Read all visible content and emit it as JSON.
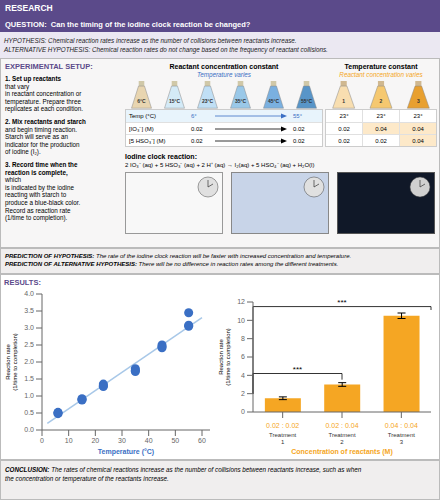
{
  "chart_data": [
    {
      "type": "scatter",
      "x": [
        6,
        6,
        6,
        15,
        15,
        15,
        23,
        23,
        23,
        35,
        35,
        35,
        45,
        45,
        45,
        55,
        55,
        55
      ],
      "series": [
        {
          "type": "line",
          "color": "#a8c8e8",
          "x": [
            2,
            60
          ],
          "values": [
            0.1937,
            3.3036
          ]
        },
        {
          "type": "scatter",
          "color": "#3a6fc4",
          "values": [
            0.5,
            0.48,
            0.52,
            0.9,
            0.92,
            0.88,
            1.3,
            1.35,
            1.28,
            1.75,
            1.8,
            1.72,
            2.45,
            2.5,
            2.42,
            3.05,
            3.45,
            3.08
          ]
        }
      ],
      "xlabel": "Temperature (°C)",
      "ylabel": "Reaction rate\n(1/time to completion)",
      "xlim": [
        0,
        63
      ],
      "ylim": [
        0,
        4
      ],
      "xticks": [
        0,
        10,
        20,
        30,
        40,
        50,
        60
      ],
      "yticks": [
        {
          "value": 0,
          "label": "0.0"
        },
        0.5,
        {
          "value": 1,
          "label": "1.0"
        },
        1.5,
        {
          "value": 2,
          "label": "2.0"
        },
        2.5,
        {
          "value": 3,
          "label": "3.0"
        },
        3.5,
        {
          "value": 4,
          "label": "4.0"
        }
      ]
    },
    {
      "type": "bar",
      "categories": [
        "0.02 : 0.02",
        "0.02 : 0.04",
        "0.04 : 0.04"
      ],
      "values": [
        1.5,
        3.0,
        10.5
      ],
      "errors": [
        0.15,
        0.2,
        0.3
      ],
      "color": "#f5a623",
      "xlabel": "Concentration of reactants (M)",
      "ylabel": "Reaction rate\n(1/time to completion)",
      "ylim": [
        0,
        12
      ],
      "yticks": [
        0,
        2,
        4,
        6,
        8,
        10,
        12
      ],
      "annotations": [
        "Treatment\n1",
        "Treatment\n2",
        "Treatment\n3"
      ],
      "brackets": [
        {
          "from": "0.02 : 0.02",
          "to": "0.02 : 0.04",
          "y": 4.2,
          "label": "***"
        },
        {
          "from": "0.02 : 0.02",
          "to": "0.04 : 0.04",
          "y": 11.5,
          "label": "***"
        }
      ]
    }
  ],
  "page": {
    "header": "RESEARCH",
    "question": "QUESTION:  Can the timing of the iodine clock reaction be changed?",
    "hypothesis": "HYPOTHESIS: Chemical reaction rates increase as the number of collisions between reactants increase.",
    "alt_hypothesis": "ALTERNATIVE HYPOTHESIS: Chemical reaction rates do not change based on the frequency of reactant collisions.",
    "setup_title": "EXPERIMENTAL SETUP:",
    "steps": [
      {
        "bold": "1. Set up reactants",
        "rest": " that vary\nin reactant concentration or\ntemperature. Prepare three\nreplicates at each condition."
      },
      {
        "bold": "2. Mix reactants and starch",
        "rest": "\nand begin timing reaction.\nStarch will serve as an\nindicator for the production\nof iodine (I₂)."
      },
      {
        "bold": "3. Record time when the\nreaction is complete,",
        "rest": " which\nis indicated by the iodine\nreacting with starch to\nproduce a blue-black color.\nRecord as reaction rate\n(1/time to completion)."
      }
    ],
    "tables": [
      {
        "header": "Reactant concentration constant",
        "subheader": "Temperature varies",
        "color": "#3a6fc4",
        "flasks": [
          {
            "label": "6°C",
            "color": "#e8d5b0"
          },
          {
            "label": "15°C",
            "color": "#d4eaf7"
          },
          {
            "label": "23°C",
            "color": "#c0dff5"
          },
          {
            "label": "35°C",
            "color": "#9ac8e8"
          },
          {
            "label": "45°C",
            "color": "#7ab0e0"
          },
          {
            "label": "55°C",
            "color": "#5895c8"
          }
        ],
        "rows": [
          {
            "label": "Temp (°C)",
            "from": "6°",
            "to": "55°",
            "color": "#3a6fc4"
          },
          {
            "label": "[IO₃⁻] (M)",
            "from": "0.02",
            "to": "0.02",
            "color": "#000000"
          },
          {
            "label": "[5 HSO₃⁻] (M)",
            "from": "0.02",
            "to": "0.02",
            "color": "#000000"
          }
        ]
      },
      {
        "header": "Temperature constant",
        "subheader": "Reactant concentration varies",
        "color": "#f5a623",
        "flasks": [
          {
            "label": "1",
            "color": "#f8deb0"
          },
          {
            "label": "2",
            "color": "#f5c870"
          },
          {
            "label": "3",
            "color": "#e8a030"
          }
        ],
        "cells": [
          [
            "23°",
            "23°",
            "23°"
          ],
          [
            "0.02",
            "0.04",
            "0.04"
          ],
          [
            "0.02",
            "0.02",
            "0.04"
          ]
        ],
        "highlight": [
          [
            false,
            false,
            false
          ],
          [
            false,
            true,
            true
          ],
          [
            false,
            false,
            true
          ]
        ],
        "highlight_color": "#fde9c9"
      }
    ],
    "iodine_title": "Iodine clock reaction:",
    "iodine_eq": "2 IO₃⁻ (aq) + 5 HSO₃⁻ (aq) + 2 H⁺ (aq) → I₂(aq) + 5 HSO₄⁻ (aq) + H₂O(l)",
    "predictions": [
      {
        "bold": "PREDICTION OF HYPOTHESIS:",
        "rest": " The rate of the iodine clock reaction will be faster with increased concentration and temperature."
      },
      {
        "bold": "PREDICTION OF ALTERNATIVE HYPOTHESIS:",
        "rest": " There will be no difference in reaction rates among the different treatments."
      }
    ],
    "results": "RESULTS:",
    "conclusion": {
      "bold": "CONCLUSION:",
      "rest": " The rates of chemical reactions increase as the number of collisions between reactants increase, such as when\nthe concentration or temperature of the reactants increase."
    },
    "colors": {
      "purple": "#5b4a8a",
      "hypothesis_bg": "#ebe8f2",
      "setup_bg": "#f7f6f6",
      "prediction_bg": "#f0eeee",
      "results_bg": "#ffffff",
      "conclusion_bg": "#f0eeee"
    }
  }
}
